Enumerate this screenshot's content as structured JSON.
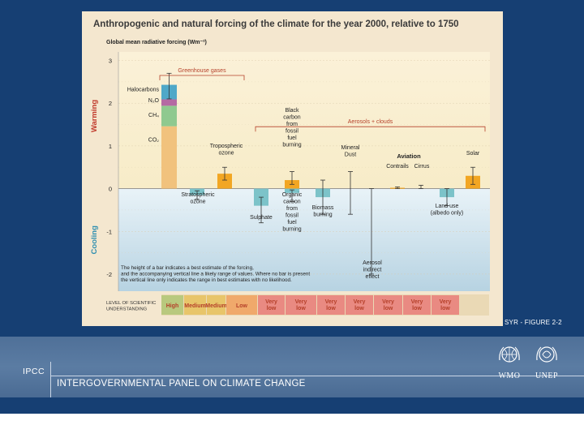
{
  "slide": {
    "figure_caption": "SYR - FIGURE 2-2",
    "org_short": "IPCC",
    "org_full": "INTERGOVERNMENTAL PANEL ON CLIMATE CHANGE",
    "logos": [
      {
        "name": "WMO",
        "icon": "wmo-emblem-icon"
      },
      {
        "name": "UNEP",
        "icon": "unep-emblem-icon"
      }
    ],
    "colors": {
      "background": "#163f73",
      "footer": "#56779e",
      "figure_bg": "#f4e7cf"
    }
  },
  "chart_data": {
    "type": "bar",
    "title": "Anthropogenic and natural forcing of the climate for the year 2000, relative to 1750",
    "ylabel": "Global mean radiative forcing (Wm⁻²)",
    "ylim": [
      -2.4,
      3.2
    ],
    "yticks": [
      3,
      2,
      1,
      0,
      -1,
      -2
    ],
    "region_labels": {
      "warming": "Warming",
      "cooling": "Cooling"
    },
    "group_labels": {
      "greenhouse": "Greenhouse gases",
      "aerosols": "Aerosols + clouds",
      "aviation": "Aviation"
    },
    "ghg_stack": [
      {
        "label": "CO₂",
        "value": 1.46,
        "color": "#f1c27d"
      },
      {
        "label": "CH₄",
        "value": 0.48,
        "color": "#8fc98f"
      },
      {
        "label": "N₂O",
        "value": 0.15,
        "color": "#b56aa3"
      },
      {
        "label": "Halocarbons",
        "value": 0.34,
        "color": "#4fa8c8"
      }
    ],
    "ghg_total": 2.43,
    "ghg_range": [
      2.1,
      2.7
    ],
    "bars": [
      {
        "label": "Tropospheric ozone",
        "value": 0.35,
        "range": [
          0.2,
          0.5
        ],
        "color": "#f2a623"
      },
      {
        "label": "Stratospheric ozone",
        "value": -0.15,
        "range": [
          -0.25,
          -0.05
        ],
        "color": "#7cc3c9"
      },
      {
        "label": "Sulphate",
        "value": -0.4,
        "range": [
          -0.8,
          -0.2
        ],
        "color": "#7cc3c9"
      },
      {
        "label": "Black carbon from fossil fuel burning",
        "value": 0.2,
        "range": [
          0.1,
          0.4
        ],
        "color": "#f2a623"
      },
      {
        "label": "Organic carbon from fossil fuel burning",
        "value": -0.1,
        "range": [
          -0.3,
          -0.03
        ],
        "color": "#7cc3c9"
      },
      {
        "label": "Biomass burning",
        "value": -0.2,
        "range": [
          -0.6,
          0.2
        ],
        "color": "#7cc3c9"
      },
      {
        "label": "Mineral Dust",
        "value": null,
        "range": [
          -0.6,
          0.4
        ],
        "color": "#7cc3c9"
      },
      {
        "label": "Aerosol indirect effect",
        "value": null,
        "range": [
          -2.0,
          0.0
        ],
        "color": "#7cc3c9"
      },
      {
        "label": "Contrails",
        "value": 0.02,
        "range": [
          0.0,
          0.04
        ],
        "color": "#f2a623"
      },
      {
        "label": "Cirrus",
        "value": null,
        "range": [
          0.0,
          0.08
        ],
        "color": "#f2a623"
      },
      {
        "label": "Land use (albedo only)",
        "value": -0.2,
        "range": [
          -0.4,
          0.0
        ],
        "color": "#7cc3c9"
      },
      {
        "label": "Solar",
        "value": 0.3,
        "range": [
          0.1,
          0.5
        ],
        "color": "#f2a623"
      }
    ],
    "annotation": "The height of a bar indicates a best estimate of the forcing, and the accompanying vertical line a likely range of values. Where no bar is present the vertical line only indicates the range in best estimates with no likelihood.",
    "understanding": {
      "title": "LEVEL OF SCIENTIFIC UNDERSTANDING",
      "levels": [
        "High",
        "Medium",
        "Medium",
        "Low",
        "Very low",
        "Very low",
        "Very low",
        "Very low",
        "Very low",
        "Very low",
        "Very low"
      ],
      "colors": [
        "#b9c97e",
        "#e8c56a",
        "#e8c56a",
        "#f0a96b",
        "#e98a82",
        "#e98a82",
        "#e98a82",
        "#e98a82",
        "#e98a82",
        "#e98a82",
        "#e98a82"
      ]
    }
  }
}
